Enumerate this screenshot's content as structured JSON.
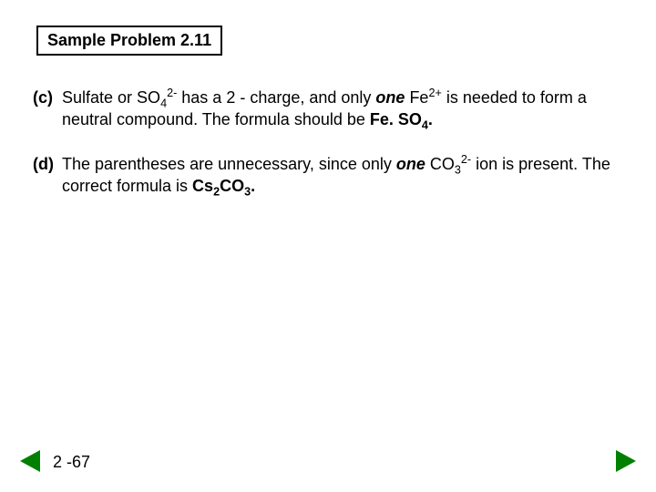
{
  "title": "Sample Problem 2.11",
  "items": [
    {
      "label": "(c)",
      "segments": [
        {
          "text": "Sulfate or SO",
          "style": "normal"
        },
        {
          "text": "4",
          "style": "sub"
        },
        {
          "text": "2-",
          "style": "sup"
        },
        {
          "text": " has a 2 - charge, and only ",
          "style": "normal"
        },
        {
          "text": "one",
          "style": "italic-bold"
        },
        {
          "text": " Fe",
          "style": "normal"
        },
        {
          "text": "2+",
          "style": "sup"
        },
        {
          "text": " is needed to form a neutral compound.  The formula should be ",
          "style": "normal"
        },
        {
          "text": "Fe. SO",
          "style": "bold"
        },
        {
          "text": "4",
          "style": "bold-sub"
        },
        {
          "text": ".",
          "style": "bold"
        }
      ]
    },
    {
      "label": "(d)",
      "segments": [
        {
          "text": "The parentheses are unnecessary, since only ",
          "style": "normal"
        },
        {
          "text": "one",
          "style": "italic-bold"
        },
        {
          "text": " CO",
          "style": "normal"
        },
        {
          "text": "3",
          "style": "sub"
        },
        {
          "text": "2-",
          "style": "sup"
        },
        {
          "text": " ion is present.  The correct formula is ",
          "style": "normal"
        },
        {
          "text": "Cs",
          "style": "bold"
        },
        {
          "text": "2",
          "style": "bold-sub"
        },
        {
          "text": "CO",
          "style": "bold"
        },
        {
          "text": "3",
          "style": "bold-sub"
        },
        {
          "text": ".",
          "style": "bold"
        }
      ]
    }
  ],
  "pageNumber": "2 -67",
  "colors": {
    "background": "#ffffff",
    "text": "#000000",
    "border": "#000000",
    "navArrow": "#008000"
  },
  "typography": {
    "bodyFontSize": 18,
    "fontFamily": "Arial"
  }
}
